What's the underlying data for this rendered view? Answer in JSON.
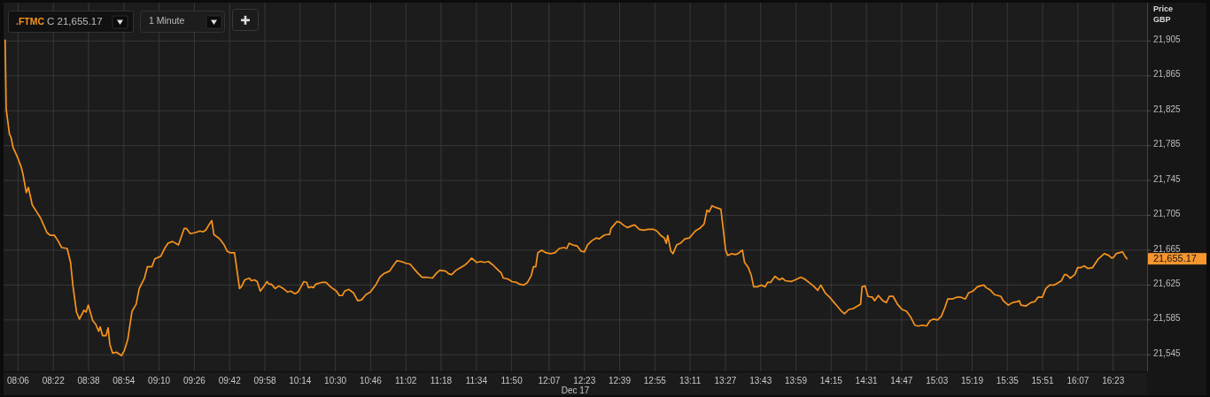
{
  "chart_data": {
    "type": "line",
    "title": ".FTMC",
    "subtitle": "C 21,655.17",
    "xlabel": "Dec 17",
    "ylabel": "Price\nGBP",
    "color": "#f7941d",
    "grid": true,
    "xlim": [
      7.99,
      16.64
    ],
    "ylim": [
      21526,
      21949
    ],
    "xticks": [
      {
        "value": 8.1,
        "label": "08:06"
      },
      {
        "value": 8.3667,
        "label": "08:22"
      },
      {
        "value": 8.6333,
        "label": "08:38"
      },
      {
        "value": 8.9,
        "label": "08:54"
      },
      {
        "value": 9.1667,
        "label": "09:10"
      },
      {
        "value": 9.4333,
        "label": "09:26"
      },
      {
        "value": 9.7,
        "label": "09:42"
      },
      {
        "value": 9.9667,
        "label": "09:58"
      },
      {
        "value": 10.2333,
        "label": "10:14"
      },
      {
        "value": 10.5,
        "label": "10:30"
      },
      {
        "value": 10.7667,
        "label": "10:46"
      },
      {
        "value": 11.0333,
        "label": "11:02"
      },
      {
        "value": 11.3,
        "label": "11:18"
      },
      {
        "value": 11.5667,
        "label": "11:34"
      },
      {
        "value": 11.8333,
        "label": "11:50"
      },
      {
        "value": 12.1167,
        "label": "12:07"
      },
      {
        "value": 12.3833,
        "label": "12:23"
      },
      {
        "value": 12.65,
        "label": "12:39"
      },
      {
        "value": 12.9167,
        "label": "12:55"
      },
      {
        "value": 13.1833,
        "label": "13:11"
      },
      {
        "value": 13.45,
        "label": "13:27"
      },
      {
        "value": 13.7167,
        "label": "13:43"
      },
      {
        "value": 13.9833,
        "label": "13:59"
      },
      {
        "value": 14.25,
        "label": "14:15"
      },
      {
        "value": 14.5167,
        "label": "14:31"
      },
      {
        "value": 14.7833,
        "label": "14:47"
      },
      {
        "value": 15.05,
        "label": "15:03"
      },
      {
        "value": 15.3167,
        "label": "15:19"
      },
      {
        "value": 15.5833,
        "label": "15:35"
      },
      {
        "value": 15.85,
        "label": "15:51"
      },
      {
        "value": 16.1167,
        "label": "16:07"
      },
      {
        "value": 16.3833,
        "label": "16:23"
      }
    ],
    "yticks": [
      {
        "value": 21545,
        "label": "21,545"
      },
      {
        "value": 21585,
        "label": "21,585"
      },
      {
        "value": 21625,
        "label": "21,625"
      },
      {
        "value": 21665,
        "label": "21,665"
      },
      {
        "value": 21705,
        "label": "21,705"
      },
      {
        "value": 21745,
        "label": "21,745"
      },
      {
        "value": 21785,
        "label": "21,785"
      },
      {
        "value": 21825,
        "label": "21,825"
      },
      {
        "value": 21865,
        "label": "21,865"
      },
      {
        "value": 21905,
        "label": "21,905"
      }
    ],
    "annotations": [
      "1 Minute",
      "21,655.17"
    ],
    "x": [
      8.002,
      8.01,
      8.035,
      8.046,
      8.062,
      8.077,
      8.1,
      8.122,
      8.136,
      8.162,
      8.178,
      8.207,
      8.241,
      8.27,
      8.296,
      8.319,
      8.345,
      8.375,
      8.397,
      8.43,
      8.471,
      8.497,
      8.515,
      8.542,
      8.564,
      8.598,
      8.614,
      8.631,
      8.665,
      8.687,
      8.71,
      8.721,
      8.739,
      8.765,
      8.781,
      8.794,
      8.815,
      8.844,
      8.882,
      8.904,
      8.929,
      8.944,
      8.962,
      8.993,
      9.016,
      9.056,
      9.078,
      9.112,
      9.134,
      9.179,
      9.212,
      9.235,
      9.268,
      9.313,
      9.357,
      9.373,
      9.402,
      9.436,
      9.476,
      9.498,
      9.52,
      9.547,
      9.565,
      9.581,
      9.625,
      9.659,
      9.681,
      9.704,
      9.737,
      9.753,
      9.775,
      9.793,
      9.815,
      9.849,
      9.864,
      9.887,
      9.909,
      9.932,
      9.961,
      9.983,
      9.999,
      10.016,
      10.045,
      10.072,
      10.106,
      10.139,
      10.162,
      10.195,
      10.217,
      10.24,
      10.262,
      10.284,
      10.296,
      10.318,
      10.334,
      10.351,
      10.396,
      10.43,
      10.463,
      10.508,
      10.53,
      10.553,
      10.57,
      10.602,
      10.637,
      10.669,
      10.698,
      10.731,
      10.765,
      10.809,
      10.836,
      10.865,
      10.91,
      10.932,
      10.966,
      10.999,
      11.033,
      11.066,
      11.093,
      11.122,
      11.156,
      11.189,
      11.234,
      11.267,
      11.29,
      11.334,
      11.357,
      11.379,
      11.413,
      11.446,
      11.48,
      11.502,
      11.531,
      11.569,
      11.602,
      11.625,
      11.658,
      11.692,
      11.725,
      11.754,
      11.77,
      11.804,
      11.837,
      11.871,
      11.893,
      11.926,
      11.953,
      11.982,
      11.998,
      12.016,
      12.031,
      12.06,
      12.094,
      12.127,
      12.161,
      12.194,
      12.228,
      12.25,
      12.268,
      12.295,
      12.328,
      12.358,
      12.384,
      12.407,
      12.44,
      12.474,
      12.496,
      12.53,
      12.552,
      12.574,
      12.585,
      12.608,
      12.63,
      12.652,
      12.686,
      12.708,
      12.742,
      12.764,
      12.798,
      12.831,
      12.865,
      12.903,
      12.932,
      12.961,
      12.988,
      13.003,
      13.014,
      13.037,
      13.054,
      13.081,
      13.11,
      13.144,
      13.177,
      13.2,
      13.222,
      13.256,
      13.289,
      13.311,
      13.327,
      13.349,
      13.378,
      13.416,
      13.434,
      13.452,
      13.468,
      13.497,
      13.524,
      13.546,
      13.568,
      13.579,
      13.595,
      13.624,
      13.646,
      13.664,
      13.691,
      13.72,
      13.751,
      13.769,
      13.792,
      13.825,
      13.859,
      13.881,
      13.903,
      13.948,
      13.993,
      14.02,
      14.049,
      14.082,
      14.116,
      14.149,
      14.172,
      14.205,
      14.239,
      14.272,
      14.295,
      14.328,
      14.35,
      14.384,
      14.417,
      14.451,
      14.473,
      14.484,
      14.507,
      14.529,
      14.563,
      14.578,
      14.607,
      14.641,
      14.668,
      14.69,
      14.719,
      14.752,
      14.786,
      14.82,
      14.853,
      14.882,
      14.909,
      14.942,
      14.971,
      14.998,
      15.025,
      15.054,
      15.083,
      15.11,
      15.132,
      15.166,
      15.199,
      15.233,
      15.266,
      15.289,
      15.322,
      15.356,
      15.378,
      15.405,
      15.423,
      15.456,
      15.485,
      15.512,
      15.534,
      15.552,
      15.59,
      15.624,
      15.657,
      15.673,
      15.686,
      15.724,
      15.762,
      15.791,
      15.814,
      15.847,
      15.874,
      15.903,
      15.936,
      15.97,
      15.992,
      16.015,
      16.03,
      16.059,
      16.093,
      16.115,
      16.137,
      16.164,
      16.193,
      16.227,
      16.249,
      16.271,
      16.316,
      16.35,
      16.372,
      16.388,
      16.405,
      16.428,
      16.455,
      16.473,
      16.488
    ],
    "values": [
      21906,
      21827,
      21798,
      21795,
      21783,
      21778,
      21770,
      21761,
      21753,
      21731,
      21737,
      21717,
      21709,
      21702,
      21693,
      21685,
      21682,
      21682,
      21677,
      21668,
      21667,
      21651,
      21624,
      21594,
      21586,
      21596,
      21594,
      21602,
      21584,
      21580,
      21572,
      21577,
      21567,
      21567,
      21576,
      21557,
      21547,
      21548,
      21544,
      21550,
      21562,
      21577,
      21595,
      21603,
      21621,
      21633,
      21646,
      21646,
      21655,
      21658,
      21668,
      21673,
      21675,
      21671,
      21690,
      21690,
      21684,
      21685,
      21687,
      21686,
      21688,
      21695,
      21699,
      21683,
      21678,
      21671,
      21664,
      21662,
      21662,
      21645,
      21621,
      21624,
      21631,
      21633,
      21630,
      21631,
      21629,
      21618,
      21624,
      21629,
      21626,
      21626,
      21621,
      21624,
      21621,
      21617,
      21618,
      21615,
      21617,
      21623,
      21629,
      21628,
      21622,
      21623,
      21622,
      21626,
      21628,
      21628,
      21623,
      21618,
      21613,
      21613,
      21618,
      21620,
      21616,
      21607,
      21608,
      21614,
      21617,
      21626,
      21634,
      21638,
      21641,
      21646,
      21653,
      21652,
      21650,
      21649,
      21644,
      21639,
      21634,
      21634,
      21633,
      21639,
      21642,
      21641,
      21638,
      21637,
      21642,
      21645,
      21648,
      21651,
      21656,
      21651,
      21652,
      21651,
      21652,
      21648,
      21643,
      21639,
      21633,
      21632,
      21629,
      21628,
      21626,
      21625,
      21628,
      21636,
      21646,
      21646,
      21662,
      21665,
      21662,
      21661,
      21662,
      21667,
      21668,
      21667,
      21673,
      21671,
      21670,
      21664,
      21663,
      21671,
      21676,
      21679,
      21678,
      21682,
      21683,
      21683,
      21690,
      21694,
      21698,
      21697,
      21693,
      21691,
      21693,
      21694,
      21689,
      21688,
      21689,
      21689,
      21687,
      21682,
      21679,
      21673,
      21682,
      21664,
      21661,
      21671,
      21673,
      21678,
      21679,
      21683,
      21687,
      21690,
      21695,
      21711,
      21709,
      21716,
      21714,
      21712,
      21689,
      21665,
      21659,
      21661,
      21660,
      21661,
      21664,
      21665,
      21651,
      21645,
      21636,
      21623,
      21623,
      21625,
      21623,
      21628,
      21628,
      21635,
      21631,
      21633,
      21630,
      21629,
      21632,
      21634,
      21632,
      21628,
      21624,
      21619,
      21625,
      21616,
      21611,
      21605,
      21601,
      21595,
      21592,
      21597,
      21598,
      21601,
      21603,
      21623,
      21624,
      21612,
      21611,
      21607,
      21613,
      21607,
      21605,
      21612,
      21612,
      21603,
      21597,
      21595,
      21588,
      21579,
      21578,
      21579,
      21578,
      21584,
      21586,
      21585,
      21589,
      21599,
      21609,
      21609,
      21611,
      21611,
      21609,
      21616,
      21618,
      21623,
      21624,
      21625,
      21622,
      21619,
      21614,
      21613,
      21612,
      21607,
      21602,
      21605,
      21606,
      21607,
      21602,
      21601,
      21605,
      21606,
      21611,
      21611,
      21621,
      21625,
      21625,
      21628,
      21630,
      21637,
      21637,
      21633,
      21637,
      21645,
      21645,
      21647,
      21644,
      21645,
      21650,
      21655,
      21661,
      21659,
      21656,
      21657,
      21661,
      21662,
      21663,
      21658,
      21655.17
    ]
  }
}
